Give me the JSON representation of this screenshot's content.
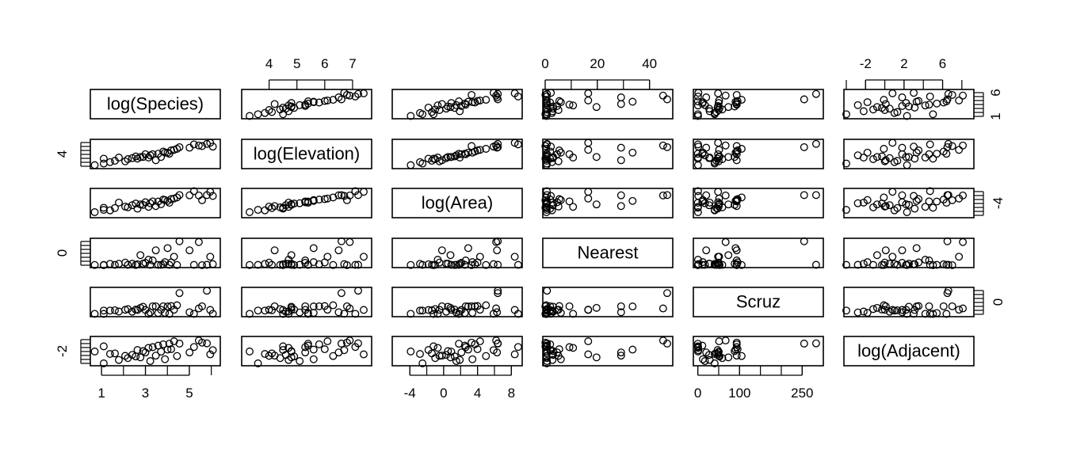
{
  "chart_data": {
    "type": "scatter",
    "variables": [
      {
        "name": "log(Species)",
        "range": [
          0.6,
          6.3
        ]
      },
      {
        "name": "log(Elevation)",
        "range": [
          3.1,
          7.6
        ]
      },
      {
        "name": "log(Area)",
        "range": [
          -5.8,
          9.0
        ]
      },
      {
        "name": "Nearest",
        "range": [
          0.0,
          48.0
        ]
      },
      {
        "name": "Scruz",
        "range": [
          -5.0,
          295.0
        ]
      },
      {
        "name": "log(Adjacent)",
        "range": [
          -4.0,
          9.0
        ]
      }
    ],
    "axis_ticks": {
      "top": [
        {
          "var": 1,
          "ticks": [
            4,
            5,
            6,
            7
          ]
        },
        {
          "var": 3,
          "ticks": [
            0,
            20,
            40
          ]
        },
        {
          "var": 5,
          "ticks": [
            -2,
            2,
            6
          ]
        }
      ],
      "bottom": [
        {
          "var": 0,
          "ticks": [
            1,
            3,
            5
          ]
        },
        {
          "var": 2,
          "ticks": [
            -4,
            0,
            4,
            8
          ]
        },
        {
          "var": 4,
          "ticks": [
            0,
            100,
            250
          ]
        }
      ],
      "left": [
        {
          "var": 1,
          "ticks": [
            4
          ]
        },
        {
          "var": 3,
          "ticks": [
            0
          ]
        },
        {
          "var": 5,
          "ticks": [
            -2
          ]
        }
      ],
      "right": [
        {
          "var": 0,
          "ticks": [
            1,
            6
          ]
        },
        {
          "var": 2,
          "ticks": [
            -4
          ]
        },
        {
          "var": 4,
          "ticks": [
            0
          ]
        }
      ]
    },
    "minor_tick_axes": {
      "top": [
        {
          "var": 3,
          "ticks": [
            0,
            10,
            20,
            30,
            40
          ]
        },
        {
          "var": 5,
          "ticks": [
            -4,
            -2,
            0,
            2,
            4,
            6,
            8
          ]
        }
      ],
      "bottom": [
        {
          "var": 0,
          "ticks": [
            1,
            2,
            3,
            4,
            5,
            6
          ]
        },
        {
          "var": 2,
          "ticks": [
            -4,
            -2,
            0,
            2,
            4,
            6,
            8
          ]
        },
        {
          "var": 4,
          "ticks": [
            0,
            50,
            100,
            150,
            200,
            250
          ]
        }
      ]
    },
    "observations": {
      "columns": [
        "log(Species)",
        "log(Elevation)",
        "log(Area)",
        "Nearest",
        "Scruz",
        "log(Adjacent)"
      ],
      "rows": [
        [
          0.69,
          3.3,
          -3.9,
          0.5,
          0.6,
          2.3
        ],
        [
          1.1,
          3.6,
          -2.5,
          0.6,
          40.4,
          -4.0
        ],
        [
          1.1,
          4.5,
          -1.2,
          0.1,
          0.1,
          5.0
        ],
        [
          1.39,
          3.85,
          -2.8,
          2.6,
          40.3,
          1.0
        ],
        [
          1.61,
          4.1,
          -1.4,
          0.6,
          44.6,
          1.3
        ],
        [
          1.79,
          4.7,
          1.9,
          2.8,
          28.5,
          -2.2
        ],
        [
          2.08,
          4.0,
          -0.5,
          5.1,
          50.0,
          0.0
        ],
        [
          2.2,
          4.4,
          -1.0,
          0.6,
          58.7,
          -1.2
        ],
        [
          2.4,
          4.6,
          0.3,
          3.0,
          27.0,
          0.5
        ],
        [
          2.56,
          4.9,
          1.3,
          0.5,
          52.0,
          -0.3
        ],
        [
          2.64,
          4.5,
          -1.8,
          1.9,
          47.4,
          3.1
        ],
        [
          2.77,
          4.8,
          0.8,
          19.7,
          73.2,
          -0.8
        ],
        [
          2.89,
          4.8,
          0.5,
          3.0,
          88.3,
          2.5
        ],
        [
          3.0,
          5.3,
          2.1,
          4.6,
          48.5,
          1.8
        ],
        [
          3.14,
          4.7,
          -0.7,
          10.7,
          0.6,
          4.2
        ],
        [
          3.22,
          5.1,
          1.5,
          0.7,
          17.1,
          -2.8
        ],
        [
          3.33,
          5.3,
          2.6,
          9.3,
          93.1,
          4.6
        ],
        [
          3.47,
          4.2,
          -0.2,
          29.1,
          93.1,
          0.1
        ],
        [
          3.58,
          5.4,
          2.5,
          0.6,
          10.7,
          5.4
        ],
        [
          3.71,
          4.8,
          0.9,
          0.6,
          50.0,
          2.2
        ],
        [
          3.81,
          5.8,
          3.7,
          1.9,
          93.1,
          6.1
        ],
        [
          3.89,
          5.6,
          3.4,
          6.0,
          12.0,
          -1.8
        ],
        [
          4.01,
          5.6,
          2.9,
          33.5,
          90.6,
          3.3
        ],
        [
          4.09,
          5.4,
          1.8,
          0.6,
          0.1,
          6.4
        ],
        [
          4.17,
          6.0,
          4.0,
          5.4,
          95.3,
          3.5
        ],
        [
          4.3,
          6.1,
          4.3,
          16.5,
          51.0,
          7.7
        ],
        [
          4.44,
          6.3,
          5.0,
          0.4,
          105.0,
          -0.1
        ],
        [
          4.55,
          6.6,
          6.4,
          46.8,
          254.7,
          6.5
        ],
        [
          5.01,
          6.5,
          6.3,
          29.1,
          20.0,
          1.8
        ],
        [
          5.21,
          7.1,
          8.8,
          0.6,
          0.6,
          4.7
        ],
        [
          5.43,
          6.9,
          6.2,
          45.2,
          66.6,
          8.1
        ],
        [
          5.8,
          7.2,
          6.4,
          0.7,
          283.4,
          6.6
        ],
        [
          5.95,
          7.4,
          8.4,
          16.5,
          48.5,
          0.8
        ],
        [
          6.07,
          6.7,
          5.9,
          2.2,
          1.3,
          3.0
        ],
        [
          5.58,
          6.8,
          3.3,
          0.1,
          93.1,
          7.0
        ]
      ]
    }
  }
}
